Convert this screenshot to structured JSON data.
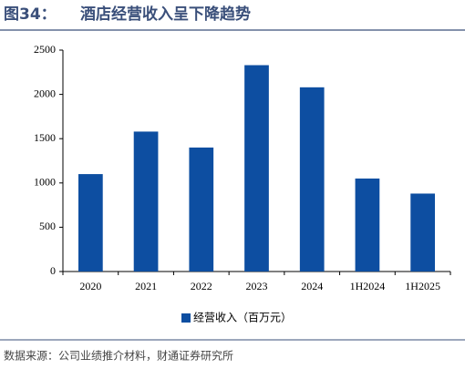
{
  "figure_label": "图34：",
  "source": "数据来源：公司业绩推介材料，财通证券研究所",
  "chart_data": {
    "type": "bar",
    "title": "酒店经营收入呈下降趋势",
    "categories": [
      "2020",
      "2021",
      "2022",
      "2023",
      "2024",
      "1H2024",
      "1H2025"
    ],
    "series": [
      {
        "name": "经营收入（百万元）",
        "color": "#0d4ea1",
        "values": [
          1100,
          1580,
          1400,
          2330,
          2080,
          1050,
          880
        ]
      }
    ],
    "ylim": [
      0,
      2500
    ],
    "yticks": [
      0,
      500,
      1000,
      1500,
      2000,
      2500
    ],
    "grid": false,
    "legend": "bottom"
  }
}
